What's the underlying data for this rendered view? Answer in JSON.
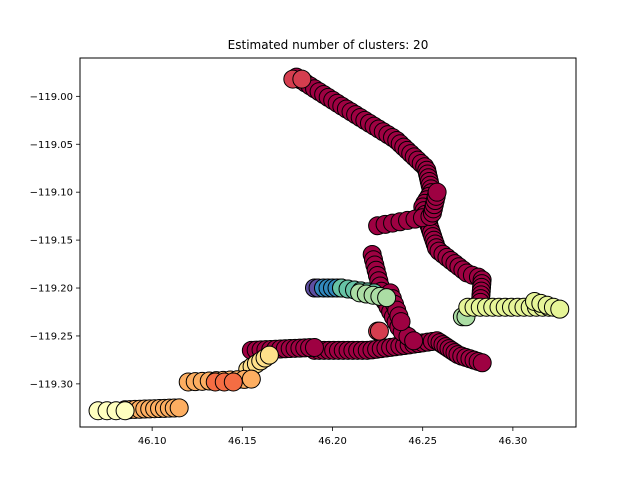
{
  "chart_data": {
    "type": "scatter",
    "title": "Estimated number of clusters: 20",
    "xlabel": "",
    "ylabel": "",
    "xlim": [
      46.06,
      46.335
    ],
    "ylim": [
      -119.345,
      -118.96
    ],
    "grid": false,
    "legend": "none",
    "x_ticks": [
      {
        "value": 46.1,
        "label": "46.10"
      },
      {
        "value": 46.15,
        "label": "46.15"
      },
      {
        "value": 46.2,
        "label": "46.20"
      },
      {
        "value": 46.25,
        "label": "46.25"
      },
      {
        "value": 46.3,
        "label": "46.30"
      }
    ],
    "y_ticks": [
      {
        "value": -119.0,
        "label": "−119.00"
      },
      {
        "value": -119.05,
        "label": "−119.05"
      },
      {
        "value": -119.1,
        "label": "−119.10"
      },
      {
        "value": -119.15,
        "label": "−119.15"
      },
      {
        "value": -119.2,
        "label": "−119.20"
      },
      {
        "value": -119.25,
        "label": "−119.25"
      },
      {
        "value": -119.3,
        "label": "−119.30"
      }
    ],
    "marker_edge_color": "#000000",
    "clusters": [
      {
        "color": "#9e0142",
        "path": [
          [
            46.18,
            -118.98
          ],
          [
            46.205,
            -119.01
          ],
          [
            46.235,
            -119.045
          ],
          [
            46.252,
            -119.075
          ],
          [
            46.255,
            -119.1
          ],
          [
            46.25,
            -119.115
          ],
          [
            46.258,
            -119.16
          ],
          [
            46.275,
            -119.185
          ],
          [
            46.283,
            -119.19
          ],
          [
            46.282,
            -119.215
          ]
        ],
        "n": 70
      },
      {
        "color": "#9e0142",
        "path": [
          [
            46.225,
            -119.135
          ],
          [
            46.255,
            -119.125
          ],
          [
            46.258,
            -119.1
          ]
        ],
        "n": 14
      },
      {
        "color": "#9e0142",
        "path": [
          [
            46.19,
            -119.265
          ],
          [
            46.22,
            -119.265
          ],
          [
            46.24,
            -119.26
          ],
          [
            46.258,
            -119.255
          ],
          [
            46.27,
            -119.27
          ],
          [
            46.283,
            -119.278
          ]
        ],
        "n": 40
      },
      {
        "color": "#9e0142",
        "path": [
          [
            46.155,
            -119.265
          ],
          [
            46.19,
            -119.262
          ]
        ],
        "n": 14
      },
      {
        "color": "#9e0142",
        "path": [
          [
            46.222,
            -119.165
          ],
          [
            46.228,
            -119.21
          ],
          [
            46.238,
            -119.245
          ],
          [
            46.245,
            -119.255
          ]
        ],
        "n": 18
      },
      {
        "color": "#9e0142",
        "path": [
          [
            46.232,
            -119.205
          ],
          [
            46.238,
            -119.235
          ]
        ],
        "n": 6
      },
      {
        "color": "#d53e4f",
        "path": [
          [
            46.178,
            -118.982
          ],
          [
            46.183,
            -118.982
          ]
        ],
        "n": 2
      },
      {
        "color": "#d53e4f",
        "path": [
          [
            46.225,
            -119.245
          ],
          [
            46.226,
            -119.245
          ]
        ],
        "n": 2
      },
      {
        "color": "#5e4fa2",
        "path": [
          [
            46.19,
            -119.2
          ],
          [
            46.192,
            -119.2
          ]
        ],
        "n": 2
      },
      {
        "color": "#3288bd",
        "path": [
          [
            46.195,
            -119.2
          ],
          [
            46.205,
            -119.2
          ]
        ],
        "n": 5
      },
      {
        "color": "#66c2a5",
        "path": [
          [
            46.205,
            -119.2
          ],
          [
            46.223,
            -119.205
          ]
        ],
        "n": 6
      },
      {
        "color": "#abdda4",
        "path": [
          [
            46.215,
            -119.205
          ],
          [
            46.23,
            -119.21
          ]
        ],
        "n": 5
      },
      {
        "color": "#abdda4",
        "path": [
          [
            46.272,
            -119.23
          ],
          [
            46.274,
            -119.23
          ]
        ],
        "n": 2
      },
      {
        "color": "#e6f598",
        "path": [
          [
            46.275,
            -119.22
          ],
          [
            46.32,
            -119.22
          ]
        ],
        "n": 14
      },
      {
        "color": "#e6f598",
        "path": [
          [
            46.312,
            -119.214
          ],
          [
            46.326,
            -119.222
          ]
        ],
        "n": 5
      },
      {
        "color": "#fee08b",
        "path": [
          [
            46.153,
            -119.285
          ],
          [
            46.165,
            -119.27
          ]
        ],
        "n": 6
      },
      {
        "color": "#fdae61",
        "path": [
          [
            46.12,
            -119.298
          ],
          [
            46.155,
            -119.295
          ]
        ],
        "n": 10
      },
      {
        "color": "#fdae61",
        "path": [
          [
            46.085,
            -119.327
          ],
          [
            46.115,
            -119.325
          ]
        ],
        "n": 12
      },
      {
        "color": "#f46d43",
        "path": [
          [
            46.135,
            -119.298
          ],
          [
            46.145,
            -119.298
          ]
        ],
        "n": 3
      },
      {
        "color": "#ffffbf",
        "path": [
          [
            46.07,
            -119.328
          ],
          [
            46.085,
            -119.328
          ]
        ],
        "n": 4
      }
    ]
  }
}
